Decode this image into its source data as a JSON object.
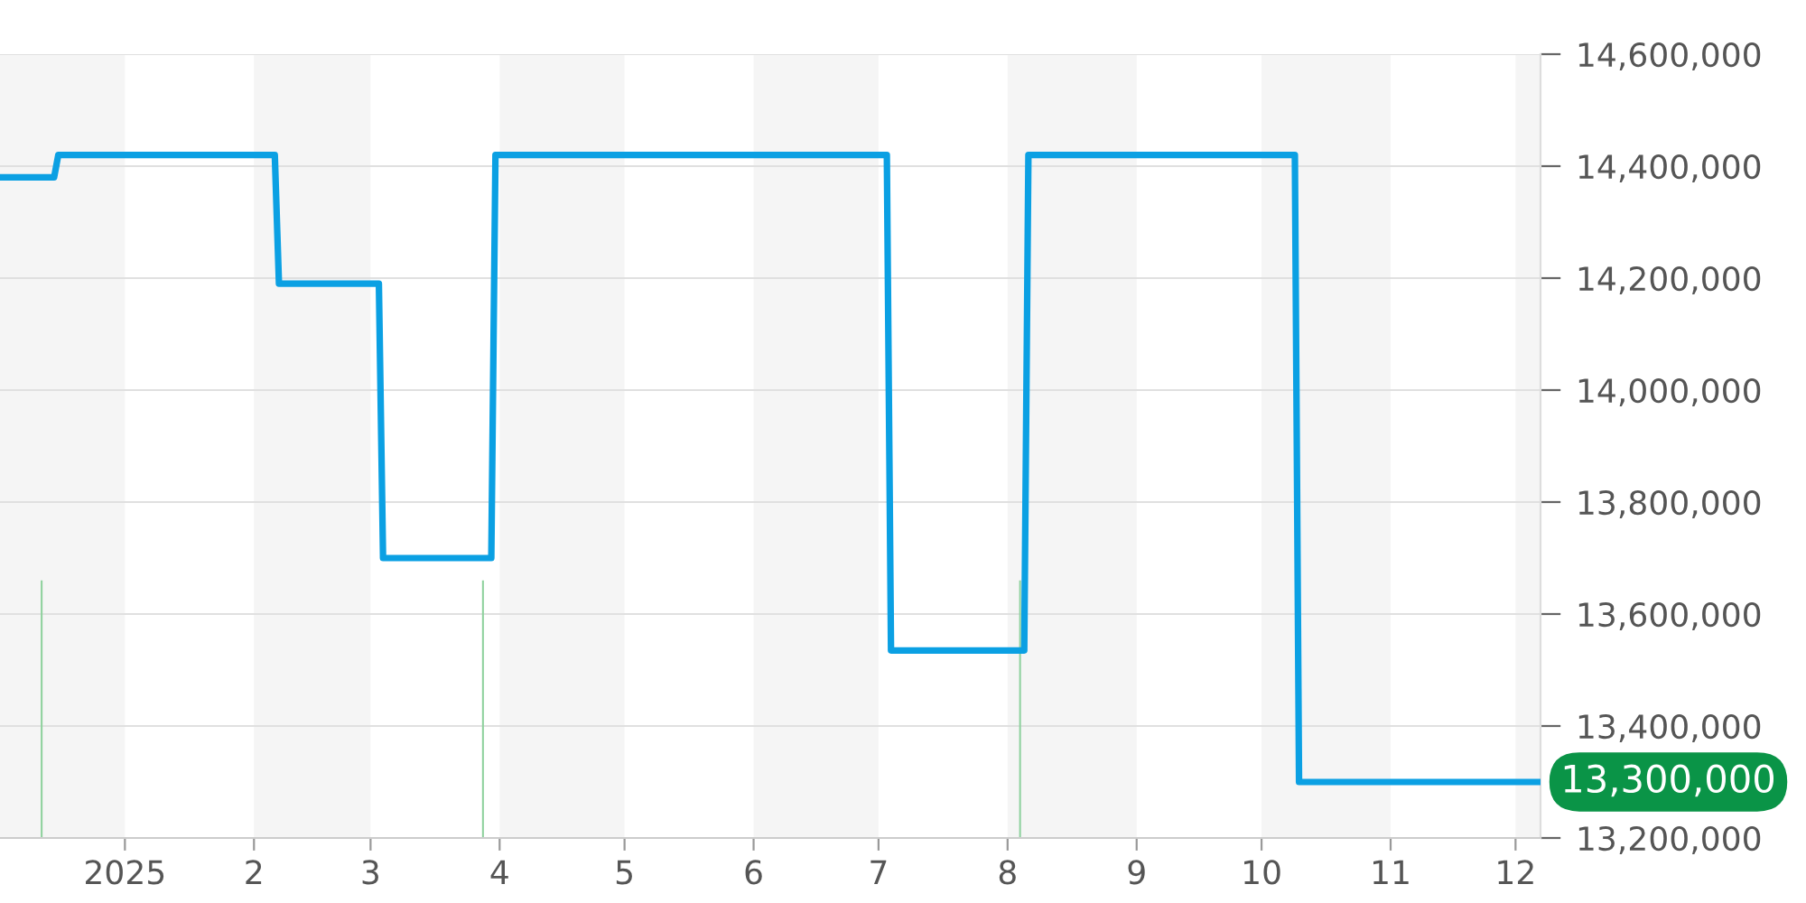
{
  "chart_data": {
    "type": "line",
    "x": [
      "2024-12-02",
      "2024-12-15",
      "2024-12-16",
      "2025-02-06",
      "2025-02-07",
      "2025-03-03",
      "2025-03-04",
      "2025-03-30",
      "2025-03-31",
      "2025-07-03",
      "2025-07-04",
      "2025-08-05",
      "2025-08-06",
      "2025-10-09",
      "2025-10-10",
      "2025-12-07"
    ],
    "series": [
      {
        "color": "#0ba0e3",
        "values": [
          14380000,
          14380000,
          14420000,
          14420000,
          14190000,
          14190000,
          13700000,
          13700000,
          14420000,
          14420000,
          13535000,
          13535000,
          14420000,
          14420000,
          13300000,
          13300000
        ]
      },
      {
        "type": "bar",
        "color": "#8fd19e",
        "x": [
          "2024-12-12",
          "2025-03-28",
          "2025-08-04"
        ],
        "values": [
          13660000,
          13660000,
          13660000
        ]
      }
    ],
    "xlim": [
      "2024-12-02",
      "2025-12-07"
    ],
    "xticks": [
      {
        "value": "2025-01-01",
        "label": "2025"
      },
      {
        "value": "2025-02-01",
        "label": "2"
      },
      {
        "value": "2025-03-01",
        "label": "3"
      },
      {
        "value": "2025-04-01",
        "label": "4"
      },
      {
        "value": "2025-05-01",
        "label": "5"
      },
      {
        "value": "2025-06-01",
        "label": "6"
      },
      {
        "value": "2025-07-01",
        "label": "7"
      },
      {
        "value": "2025-08-01",
        "label": "8"
      },
      {
        "value": "2025-09-01",
        "label": "9"
      },
      {
        "value": "2025-10-01",
        "label": "10"
      },
      {
        "value": "2025-11-01",
        "label": "11"
      },
      {
        "value": "2025-12-01",
        "label": "12"
      }
    ],
    "ylim": [
      13200000,
      14600000
    ],
    "yticks": [
      {
        "value": 13200000,
        "label": "13,200,000"
      },
      {
        "value": 13400000,
        "label": "13,400,000"
      },
      {
        "value": 13600000,
        "label": "13,600,000"
      },
      {
        "value": 13800000,
        "label": "13,800,000"
      },
      {
        "value": 14000000,
        "label": "14,000,000"
      },
      {
        "value": 14200000,
        "label": "14,200,000"
      },
      {
        "value": 14400000,
        "label": "14,400,000"
      },
      {
        "value": 14600000,
        "label": "14,600,000"
      }
    ],
    "grid": "y",
    "bands": [
      {
        "axis": "x",
        "from": "2024-12-02",
        "to": "2025-01-01",
        "color": "#f5f5f5"
      },
      {
        "axis": "x",
        "from": "2025-02-01",
        "to": "2025-03-01",
        "color": "#f5f5f5"
      },
      {
        "axis": "x",
        "from": "2025-04-01",
        "to": "2025-05-01",
        "color": "#f5f5f5"
      },
      {
        "axis": "x",
        "from": "2025-06-01",
        "to": "2025-07-01",
        "color": "#f5f5f5"
      },
      {
        "axis": "x",
        "from": "2025-08-01",
        "to": "2025-09-01",
        "color": "#f5f5f5"
      },
      {
        "axis": "x",
        "from": "2025-10-01",
        "to": "2025-11-01",
        "color": "#f5f5f5"
      },
      {
        "axis": "x",
        "from": "2025-12-01",
        "to": "2025-12-07",
        "color": "#f5f5f5"
      }
    ],
    "annotations": [
      {
        "text": "13,300,000",
        "x": "2025-12-07",
        "y": 13300000
      }
    ]
  }
}
